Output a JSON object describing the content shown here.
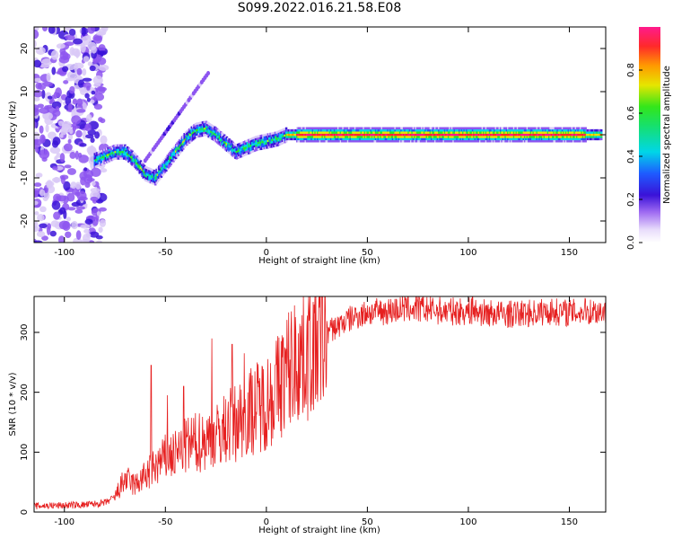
{
  "title": "S099.2022.016.21.58.E08",
  "colors": {
    "snr_line": "#e62020",
    "axis": "#000000",
    "colormap": [
      "#ffffff",
      "#d9c9f7",
      "#8d55f0",
      "#3a12d8",
      "#1e5bff",
      "#00d6e8",
      "#16e06e",
      "#33e61a",
      "#e6e600",
      "#ff9a00",
      "#ff2a2a",
      "#ff1a8c"
    ]
  },
  "chart_data": [
    {
      "type": "heatmap",
      "name": "spectrogram",
      "xlabel": "Height of straight line (km)",
      "ylabel": "Frequency (Hz)",
      "xlim": [
        -115,
        168
      ],
      "ylim": [
        -25,
        25
      ],
      "xticks": [
        -100,
        -50,
        0,
        50,
        100,
        150
      ],
      "xtick_labels": [
        "-100",
        "-50",
        "0",
        "50",
        "100",
        "150"
      ],
      "yticks": [
        -20,
        -10,
        0,
        10,
        20
      ],
      "ytick_labels": [
        "-20",
        "-10",
        "0",
        "10",
        "20"
      ],
      "ridge": {
        "x": [
          -85,
          -80,
          -75,
          -70,
          -65,
          -60,
          -55,
          -50,
          -45,
          -40,
          -35,
          -30,
          -25,
          -20,
          -15,
          -10,
          -5,
          0,
          5,
          10,
          20,
          40,
          60,
          80,
          100,
          120,
          140,
          165
        ],
        "freq": [
          -6,
          -5,
          -4,
          -4,
          -6,
          -9,
          -10,
          -7,
          -4,
          -1,
          1,
          1.5,
          0,
          -2,
          -4,
          -3,
          -2,
          -1.5,
          -1,
          0,
          0,
          0,
          0,
          0,
          0,
          0,
          0,
          0
        ]
      },
      "noise_region_x": [
        -115,
        -80
      ],
      "colorbar": {
        "label": "Normalized spectral amplitude",
        "range": [
          0,
          1
        ],
        "ticks": [
          0.0,
          0.2,
          0.4,
          0.6,
          0.8
        ],
        "tick_labels": [
          "0.0",
          "0.2",
          "0.4",
          "0.6",
          "0.8"
        ]
      }
    },
    {
      "type": "line",
      "name": "snr",
      "xlabel": "Height of straight line (km)",
      "ylabel": "SNR (10 * v/v)",
      "xlim": [
        -115,
        168
      ],
      "ylim": [
        0,
        360
      ],
      "xticks": [
        -100,
        -50,
        0,
        50,
        100,
        150
      ],
      "xtick_labels": [
        "-100",
        "-50",
        "0",
        "50",
        "100",
        "150"
      ],
      "yticks": [
        0,
        100,
        200,
        300
      ],
      "ytick_labels": [
        "0",
        "100",
        "200",
        "300"
      ],
      "trend": {
        "x": [
          -115,
          -90,
          -80,
          -75,
          -70,
          -65,
          -60,
          -55,
          -50,
          -45,
          -40,
          -35,
          -30,
          -25,
          -20,
          -15,
          -10,
          -5,
          0,
          5,
          10,
          15,
          20,
          25,
          30,
          35,
          40,
          45,
          50,
          60,
          70,
          80,
          90,
          100,
          110,
          120,
          130,
          140,
          150,
          160,
          168
        ],
        "y": [
          10,
          12,
          15,
          25,
          55,
          45,
          60,
          75,
          90,
          95,
          110,
          115,
          120,
          125,
          140,
          150,
          165,
          175,
          185,
          205,
          235,
          255,
          270,
          285,
          300,
          310,
          320,
          328,
          332,
          336,
          340,
          338,
          335,
          335,
          332,
          330,
          332,
          335,
          333,
          335,
          336
        ]
      },
      "spikes": [
        {
          "x": -57,
          "y": 245
        },
        {
          "x": -49,
          "y": 195
        },
        {
          "x": -41,
          "y": 210
        },
        {
          "x": -27,
          "y": 290
        },
        {
          "x": -17,
          "y": 280
        },
        {
          "x": -11,
          "y": 265
        },
        {
          "x": 50,
          "y": 345
        },
        {
          "x": 74,
          "y": 360
        },
        {
          "x": 102,
          "y": 360
        },
        {
          "x": 158,
          "y": 355
        }
      ]
    }
  ]
}
